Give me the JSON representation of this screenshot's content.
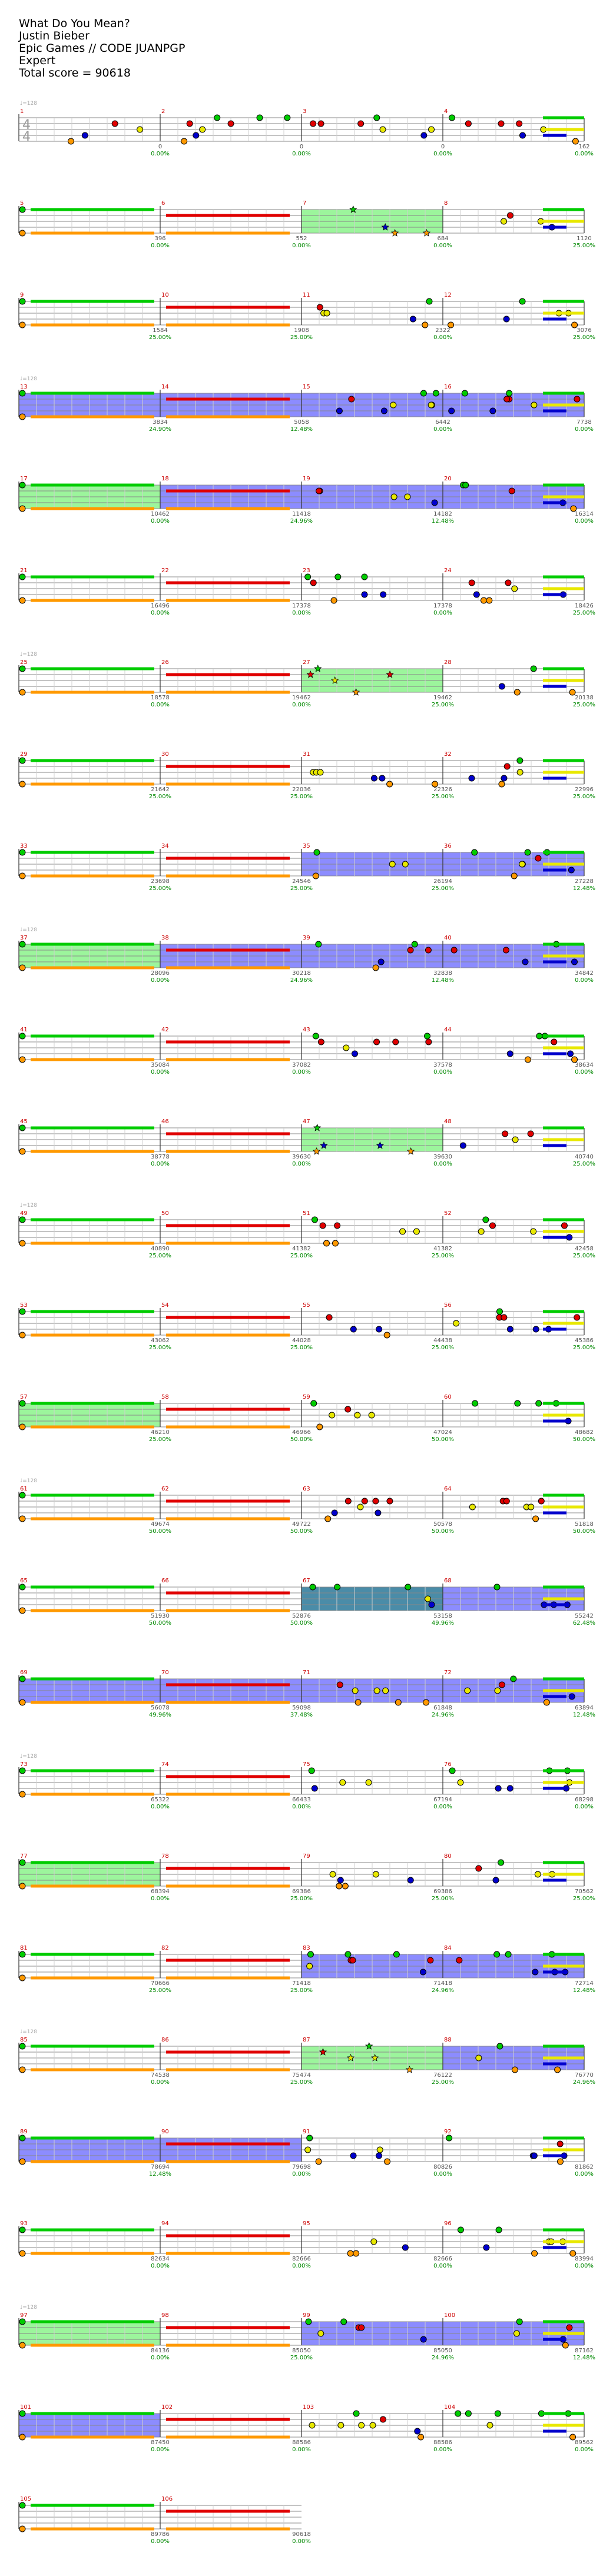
{
  "header": {
    "song": "What Do You Mean?",
    "artist": "Justin Bieber",
    "charter": "Epic Games // CODE JUANPGP",
    "difficulty": "Expert",
    "total_score": "Total score = 90618"
  },
  "colors": {
    "green": "#00cc00",
    "red": "#e00000",
    "yellow": "#e8e800",
    "blue": "#0000cc",
    "orange": "#ff9900",
    "sp_phrase": "#9cf59c",
    "sp_active": "#8c8cff",
    "sp_both": "#4a8ca8",
    "score_text": "#555555",
    "percent_text": "#008800",
    "measure_num": "#cc0000"
  },
  "tempo_label": "♩=128",
  "time_signature": {
    "numerator": "4",
    "denominator": "4"
  },
  "measures": [
    {
      "n": 1,
      "score": "0",
      "pct": "0.00%"
    },
    {
      "n": 2,
      "score": "0",
      "pct": "0.00%"
    },
    {
      "n": 3,
      "score": "0",
      "pct": "0.00%"
    },
    {
      "n": 4,
      "score": "162",
      "pct": "0.00%"
    },
    {
      "n": 5,
      "score": "396",
      "pct": "0.00%"
    },
    {
      "n": 6,
      "score": "552",
      "pct": "0.00%"
    },
    {
      "n": 7,
      "score": "684",
      "pct": "0.00%"
    },
    {
      "n": 8,
      "score": "1120",
      "pct": "25.00%"
    },
    {
      "n": 9,
      "score": "1584",
      "pct": "25.00%"
    },
    {
      "n": 10,
      "score": "1908",
      "pct": "25.00%"
    },
    {
      "n": 11,
      "score": "2322",
      "pct": "0.00%"
    },
    {
      "n": 12,
      "score": "3076",
      "pct": "25.00%"
    },
    {
      "n": 13,
      "score": "3834",
      "pct": "24.90%"
    },
    {
      "n": 14,
      "score": "5058",
      "pct": "12.48%"
    },
    {
      "n": 15,
      "score": "6442",
      "pct": "0.00%"
    },
    {
      "n": 16,
      "score": "7738",
      "pct": "0.00%"
    },
    {
      "n": 17,
      "score": "10462",
      "pct": "0.00%"
    },
    {
      "n": 18,
      "score": "11418",
      "pct": "24.96%"
    },
    {
      "n": 19,
      "score": "14182",
      "pct": "12.48%"
    },
    {
      "n": 20,
      "score": "16314",
      "pct": "0.00%"
    },
    {
      "n": 21,
      "score": "16496",
      "pct": "0.00%"
    },
    {
      "n": 22,
      "score": "17378",
      "pct": "0.00%"
    },
    {
      "n": 23,
      "score": "17378",
      "pct": "0.00%"
    },
    {
      "n": 24,
      "score": "18426",
      "pct": "25.00%"
    },
    {
      "n": 25,
      "score": "18578",
      "pct": "0.00%"
    },
    {
      "n": 26,
      "score": "19462",
      "pct": "0.00%"
    },
    {
      "n": 27,
      "score": "19462",
      "pct": "25.00%"
    },
    {
      "n": 28,
      "score": "20138",
      "pct": "25.00%"
    },
    {
      "n": 29,
      "score": "21642",
      "pct": "25.00%"
    },
    {
      "n": 30,
      "score": "22036",
      "pct": "25.00%"
    },
    {
      "n": 31,
      "score": "22326",
      "pct": "25.00%"
    },
    {
      "n": 32,
      "score": "22996",
      "pct": "25.00%"
    },
    {
      "n": 33,
      "score": "23698",
      "pct": "25.00%"
    },
    {
      "n": 34,
      "score": "24546",
      "pct": "25.00%"
    },
    {
      "n": 35,
      "score": "26194",
      "pct": "25.00%"
    },
    {
      "n": 36,
      "score": "27228",
      "pct": "12.48%"
    },
    {
      "n": 37,
      "score": "28096",
      "pct": "0.00%"
    },
    {
      "n": 38,
      "score": "30218",
      "pct": "24.96%"
    },
    {
      "n": 39,
      "score": "32838",
      "pct": "12.48%"
    },
    {
      "n": 40,
      "score": "34842",
      "pct": "0.00%"
    },
    {
      "n": 41,
      "score": "35084",
      "pct": "0.00%"
    },
    {
      "n": 42,
      "score": "37082",
      "pct": "0.00%"
    },
    {
      "n": 43,
      "score": "37578",
      "pct": "0.00%"
    },
    {
      "n": 44,
      "score": "38634",
      "pct": "0.00%"
    },
    {
      "n": 45,
      "score": "38778",
      "pct": "0.00%"
    },
    {
      "n": 46,
      "score": "39630",
      "pct": "0.00%"
    },
    {
      "n": 47,
      "score": "39630",
      "pct": "0.00%"
    },
    {
      "n": 48,
      "score": "40740",
      "pct": "25.00%"
    },
    {
      "n": 49,
      "score": "40890",
      "pct": "25.00%"
    },
    {
      "n": 50,
      "score": "41382",
      "pct": "25.00%"
    },
    {
      "n": 51,
      "score": "41382",
      "pct": "25.00%"
    },
    {
      "n": 52,
      "score": "42458",
      "pct": "25.00%"
    },
    {
      "n": 53,
      "score": "43062",
      "pct": "25.00%"
    },
    {
      "n": 54,
      "score": "44028",
      "pct": "25.00%"
    },
    {
      "n": 55,
      "score": "44438",
      "pct": "25.00%"
    },
    {
      "n": 56,
      "score": "45386",
      "pct": "25.00%"
    },
    {
      "n": 57,
      "score": "46210",
      "pct": "25.00%"
    },
    {
      "n": 58,
      "score": "46966",
      "pct": "50.00%"
    },
    {
      "n": 59,
      "score": "47024",
      "pct": "50.00%"
    },
    {
      "n": 60,
      "score": "48682",
      "pct": "50.00%"
    },
    {
      "n": 61,
      "score": "49674",
      "pct": "50.00%"
    },
    {
      "n": 62,
      "score": "49722",
      "pct": "50.00%"
    },
    {
      "n": 63,
      "score": "50578",
      "pct": "50.00%"
    },
    {
      "n": 64,
      "score": "51818",
      "pct": "50.00%"
    },
    {
      "n": 65,
      "score": "51930",
      "pct": "50.00%"
    },
    {
      "n": 66,
      "score": "52876",
      "pct": "50.00%"
    },
    {
      "n": 67,
      "score": "53158",
      "pct": "49.96%"
    },
    {
      "n": 68,
      "score": "55242",
      "pct": "62.48%"
    },
    {
      "n": 69,
      "score": "56078",
      "pct": "49.96%"
    },
    {
      "n": 70,
      "score": "59098",
      "pct": "37.48%"
    },
    {
      "n": 71,
      "score": "61848",
      "pct": "24.96%"
    },
    {
      "n": 72,
      "score": "63894",
      "pct": "12.48%"
    },
    {
      "n": 73,
      "score": "65322",
      "pct": "0.00%"
    },
    {
      "n": 74,
      "score": "66433",
      "pct": "0.00%"
    },
    {
      "n": 75,
      "score": "67194",
      "pct": "0.00%"
    },
    {
      "n": 76,
      "score": "68298",
      "pct": "0.00%"
    },
    {
      "n": 77,
      "score": "68394",
      "pct": "0.00%"
    },
    {
      "n": 78,
      "score": "69386",
      "pct": "25.00%"
    },
    {
      "n": 79,
      "score": "69386",
      "pct": "25.00%"
    },
    {
      "n": 80,
      "score": "70562",
      "pct": "25.00%"
    },
    {
      "n": 81,
      "score": "70666",
      "pct": "25.00%"
    },
    {
      "n": 82,
      "score": "71418",
      "pct": "25.00%"
    },
    {
      "n": 83,
      "score": "71418",
      "pct": "24.96%"
    },
    {
      "n": 84,
      "score": "72714",
      "pct": "12.48%"
    },
    {
      "n": 85,
      "score": "74538",
      "pct": "0.00%"
    },
    {
      "n": 86,
      "score": "75474",
      "pct": "25.00%"
    },
    {
      "n": 87,
      "score": "76122",
      "pct": "25.00%"
    },
    {
      "n": 88,
      "score": "76770",
      "pct": "24.96%"
    },
    {
      "n": 89,
      "score": "78694",
      "pct": "12.48%"
    },
    {
      "n": 90,
      "score": "79698",
      "pct": "0.00%"
    },
    {
      "n": 91,
      "score": "80826",
      "pct": "0.00%"
    },
    {
      "n": 92,
      "score": "81862",
      "pct": "0.00%"
    },
    {
      "n": 93,
      "score": "82634",
      "pct": "0.00%"
    },
    {
      "n": 94,
      "score": "82666",
      "pct": "0.00%"
    },
    {
      "n": 95,
      "score": "82666",
      "pct": "0.00%"
    },
    {
      "n": 96,
      "score": "83994",
      "pct": "0.00%"
    },
    {
      "n": 97,
      "score": "84136",
      "pct": "0.00%"
    },
    {
      "n": 98,
      "score": "85050",
      "pct": "25.00%"
    },
    {
      "n": 99,
      "score": "85050",
      "pct": "24.96%"
    },
    {
      "n": 100,
      "score": "87162",
      "pct": "12.48%"
    },
    {
      "n": 101,
      "score": "87450",
      "pct": "0.00%"
    },
    {
      "n": 102,
      "score": "88586",
      "pct": "0.00%"
    },
    {
      "n": 103,
      "score": "88586",
      "pct": "0.00%"
    },
    {
      "n": 104,
      "score": "89562",
      "pct": "0.00%"
    },
    {
      "n": 105,
      "score": "89786",
      "pct": "0.00%"
    },
    {
      "n": 106,
      "score": "90618",
      "pct": "0.00%"
    }
  ],
  "sp_phrase_measures": [
    7,
    17,
    27,
    37,
    47,
    57,
    77,
    87,
    97
  ],
  "sp_active_measures": [
    13,
    14,
    15,
    16,
    18,
    19,
    20,
    35,
    36,
    38,
    39,
    40,
    68,
    69,
    70,
    71,
    72,
    83,
    84,
    88,
    89,
    90,
    99,
    100,
    101
  ],
  "sp_both_measures": [
    67
  ]
}
